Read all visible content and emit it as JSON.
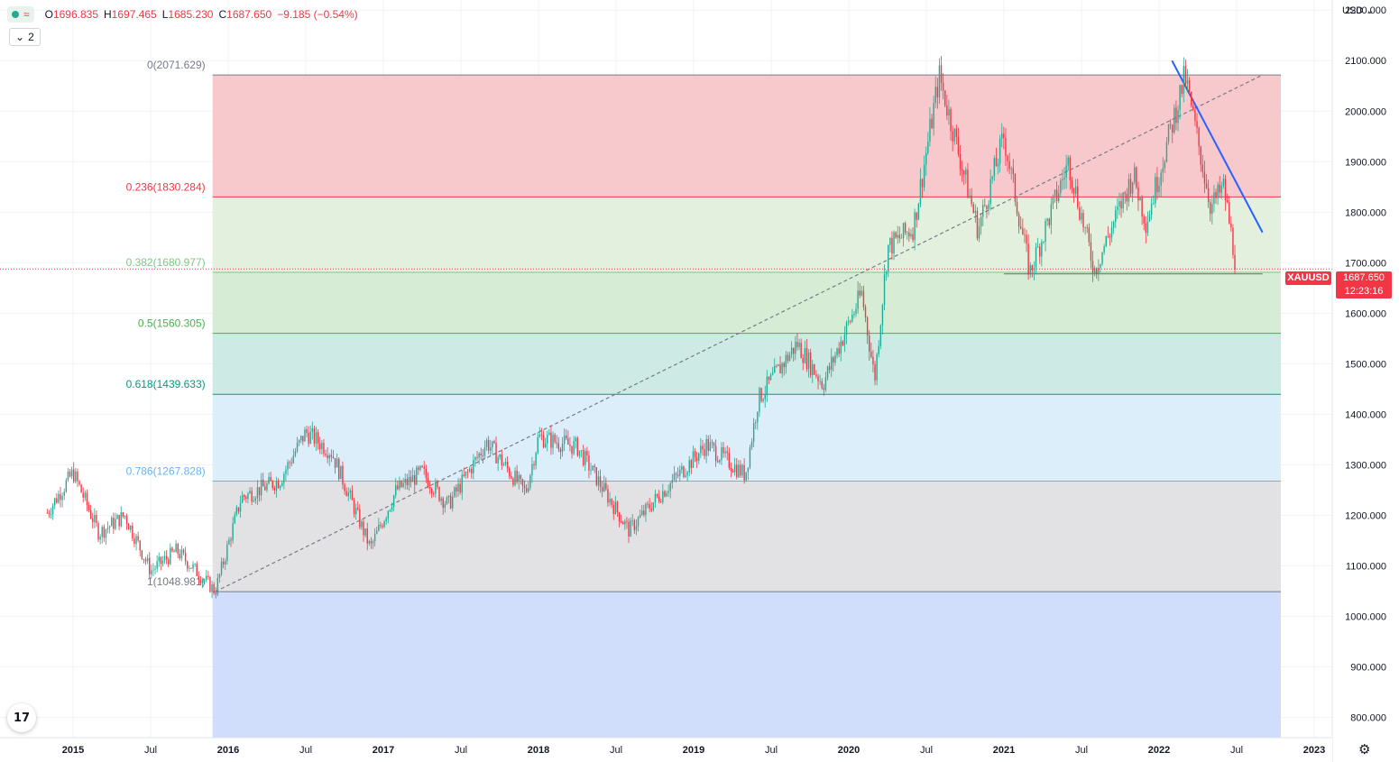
{
  "ohlc": {
    "open_label": "O",
    "open": "1696.835",
    "high_label": "H",
    "high": "1697.465",
    "low_label": "L",
    "low": "1685.230",
    "close_label": "C",
    "close": "1687.650",
    "change": "−9.185 (−0.54%)"
  },
  "collapse_count": "2",
  "currency": "USD",
  "symbol": "XAUUSD",
  "last_price": "1687.650",
  "countdown": "12:23:16",
  "colors": {
    "up": "#22ab94",
    "down": "#f23645",
    "trendline": "#2962ff",
    "last_price": "#f23645"
  },
  "chart_data": {
    "type": "candlestick",
    "ylim": [
      760,
      2220
    ],
    "y_ticks": [
      "2200.000",
      "2100.000",
      "2000.000",
      "1900.000",
      "1800.000",
      "1700.000",
      "1600.000",
      "1500.000",
      "1400.000",
      "1300.000",
      "1200.000",
      "1100.000",
      "1000.000",
      "900.000",
      "800.000"
    ],
    "x_ticks": [
      "2015",
      "Jul",
      "2016",
      "Jul",
      "2017",
      "Jul",
      "2018",
      "Jul",
      "2019",
      "Jul",
      "2020",
      "Jul",
      "2021",
      "Jul",
      "2022",
      "Jul",
      "2023"
    ],
    "fibonacci": {
      "levels": [
        {
          "label": "0(2071.629)",
          "ratio": 0,
          "price": 2071.629,
          "color": "#787b86",
          "fill": "#f7c9cd"
        },
        {
          "label": "0.236(1830.284)",
          "ratio": 0.236,
          "price": 1830.284,
          "color": "#f23645",
          "fill": "#e2f0dd"
        },
        {
          "label": "0.382(1680.977)",
          "ratio": 0.382,
          "price": 1680.977,
          "color": "#81c784",
          "fill": "#d7ecd4"
        },
        {
          "label": "0.5(1560.305)",
          "ratio": 0.5,
          "price": 1560.305,
          "color": "#4caf50",
          "fill": "#cdeae4"
        },
        {
          "label": "0.618(1439.633)",
          "ratio": 0.618,
          "price": 1439.633,
          "color": "#089981",
          "fill": "#dbeefa"
        },
        {
          "label": "0.786(1267.828)",
          "ratio": 0.786,
          "price": 1267.828,
          "color": "#64b5f6",
          "fill": "#e2e2e4"
        },
        {
          "label": "1(1048.981)",
          "ratio": 1,
          "price": 1048.981,
          "color": "#787b86",
          "fill": "#d0ddfb"
        }
      ]
    },
    "price_path": [
      [
        "2014-11",
        1205
      ],
      [
        "2015-01",
        1285
      ],
      [
        "2015-03",
        1165
      ],
      [
        "2015-05",
        1200
      ],
      [
        "2015-07",
        1090
      ],
      [
        "2015-09",
        1130
      ],
      [
        "2015-12",
        1050
      ],
      [
        "2016-02",
        1235
      ],
      [
        "2016-05",
        1270
      ],
      [
        "2016-07",
        1365
      ],
      [
        "2016-09",
        1325
      ],
      [
        "2016-12",
        1135
      ],
      [
        "2017-02",
        1250
      ],
      [
        "2017-04",
        1285
      ],
      [
        "2017-06",
        1220
      ],
      [
        "2017-09",
        1345
      ],
      [
        "2017-12",
        1245
      ],
      [
        "2018-01",
        1355
      ],
      [
        "2018-04",
        1335
      ],
      [
        "2018-08",
        1170
      ],
      [
        "2018-10",
        1230
      ],
      [
        "2019-02",
        1340
      ],
      [
        "2019-05",
        1280
      ],
      [
        "2019-06",
        1430
      ],
      [
        "2019-09",
        1540
      ],
      [
        "2019-11",
        1460
      ],
      [
        "2020-02",
        1640
      ],
      [
        "2020-03",
        1470
      ],
      [
        "2020-04",
        1730
      ],
      [
        "2020-06",
        1770
      ],
      [
        "2020-08",
        2070
      ],
      [
        "2020-11",
        1765
      ],
      [
        "2021-01",
        1950
      ],
      [
        "2021-03",
        1680
      ],
      [
        "2021-06",
        1900
      ],
      [
        "2021-08",
        1685
      ],
      [
        "2021-11",
        1875
      ],
      [
        "2021-12",
        1780
      ],
      [
        "2022-03",
        2070
      ],
      [
        "2022-05",
        1810
      ],
      [
        "2022-06",
        1850
      ],
      [
        "2022-07",
        1687
      ]
    ],
    "trendlines": [
      {
        "name": "",
        "from": [
          "2015-12",
          1048.981
        ],
        "to": [
          "2022-09",
          2071.629
        ],
        "style": "dashed"
      },
      {
        "name": "",
        "from": [
          "2022-02",
          2100
        ],
        "to": [
          "2022-09",
          1760
        ],
        "style": "solid"
      },
      {
        "name": "",
        "from": [
          "2021-01",
          1678
        ],
        "to": [
          "2022-09",
          1678
        ],
        "style": "solid"
      }
    ],
    "last_price": 1687.65
  }
}
